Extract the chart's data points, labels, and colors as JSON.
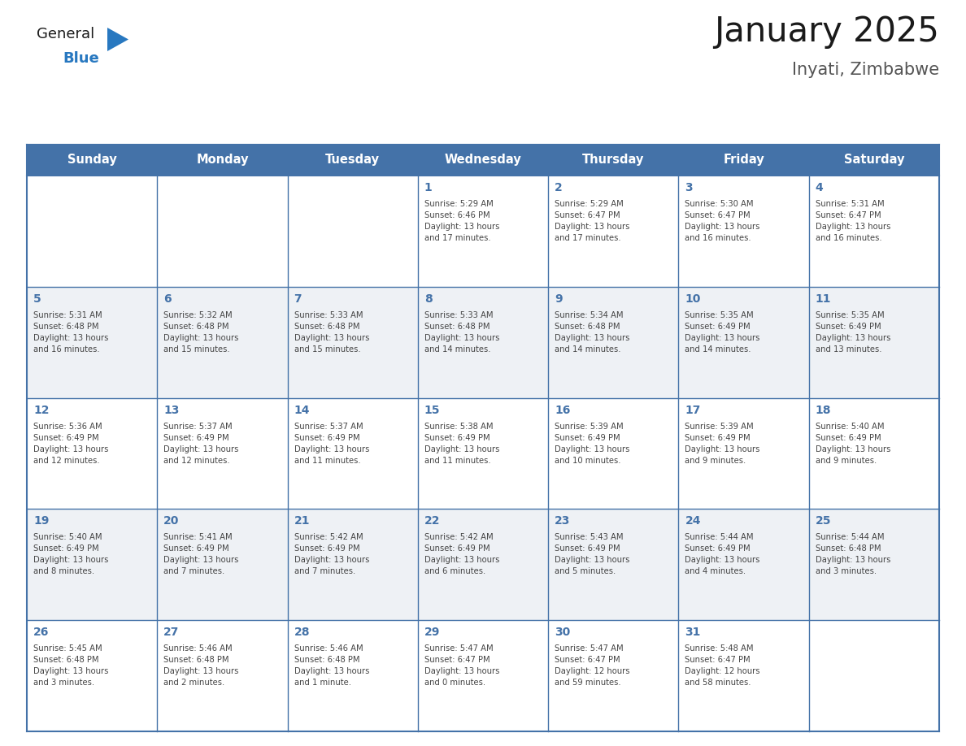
{
  "title": "January 2025",
  "subtitle": "Inyati, Zimbabwe",
  "days_of_week": [
    "Sunday",
    "Monday",
    "Tuesday",
    "Wednesday",
    "Thursday",
    "Friday",
    "Saturday"
  ],
  "header_bg": "#4472a8",
  "header_text": "#ffffff",
  "cell_bg_odd": "#eef1f5",
  "cell_bg_even": "#ffffff",
  "border_color": "#4472a8",
  "day_num_color": "#4472a8",
  "text_color": "#444444",
  "title_color": "#1a1a1a",
  "subtitle_color": "#555555",
  "logo_general_color": "#1a1a1a",
  "logo_blue_color": "#2878c0",
  "logo_triangle_color": "#2878c0",
  "calendar": [
    [
      {
        "day": null,
        "info": ""
      },
      {
        "day": null,
        "info": ""
      },
      {
        "day": null,
        "info": ""
      },
      {
        "day": 1,
        "info": "Sunrise: 5:29 AM\nSunset: 6:46 PM\nDaylight: 13 hours\nand 17 minutes."
      },
      {
        "day": 2,
        "info": "Sunrise: 5:29 AM\nSunset: 6:47 PM\nDaylight: 13 hours\nand 17 minutes."
      },
      {
        "day": 3,
        "info": "Sunrise: 5:30 AM\nSunset: 6:47 PM\nDaylight: 13 hours\nand 16 minutes."
      },
      {
        "day": 4,
        "info": "Sunrise: 5:31 AM\nSunset: 6:47 PM\nDaylight: 13 hours\nand 16 minutes."
      }
    ],
    [
      {
        "day": 5,
        "info": "Sunrise: 5:31 AM\nSunset: 6:48 PM\nDaylight: 13 hours\nand 16 minutes."
      },
      {
        "day": 6,
        "info": "Sunrise: 5:32 AM\nSunset: 6:48 PM\nDaylight: 13 hours\nand 15 minutes."
      },
      {
        "day": 7,
        "info": "Sunrise: 5:33 AM\nSunset: 6:48 PM\nDaylight: 13 hours\nand 15 minutes."
      },
      {
        "day": 8,
        "info": "Sunrise: 5:33 AM\nSunset: 6:48 PM\nDaylight: 13 hours\nand 14 minutes."
      },
      {
        "day": 9,
        "info": "Sunrise: 5:34 AM\nSunset: 6:48 PM\nDaylight: 13 hours\nand 14 minutes."
      },
      {
        "day": 10,
        "info": "Sunrise: 5:35 AM\nSunset: 6:49 PM\nDaylight: 13 hours\nand 14 minutes."
      },
      {
        "day": 11,
        "info": "Sunrise: 5:35 AM\nSunset: 6:49 PM\nDaylight: 13 hours\nand 13 minutes."
      }
    ],
    [
      {
        "day": 12,
        "info": "Sunrise: 5:36 AM\nSunset: 6:49 PM\nDaylight: 13 hours\nand 12 minutes."
      },
      {
        "day": 13,
        "info": "Sunrise: 5:37 AM\nSunset: 6:49 PM\nDaylight: 13 hours\nand 12 minutes."
      },
      {
        "day": 14,
        "info": "Sunrise: 5:37 AM\nSunset: 6:49 PM\nDaylight: 13 hours\nand 11 minutes."
      },
      {
        "day": 15,
        "info": "Sunrise: 5:38 AM\nSunset: 6:49 PM\nDaylight: 13 hours\nand 11 minutes."
      },
      {
        "day": 16,
        "info": "Sunrise: 5:39 AM\nSunset: 6:49 PM\nDaylight: 13 hours\nand 10 minutes."
      },
      {
        "day": 17,
        "info": "Sunrise: 5:39 AM\nSunset: 6:49 PM\nDaylight: 13 hours\nand 9 minutes."
      },
      {
        "day": 18,
        "info": "Sunrise: 5:40 AM\nSunset: 6:49 PM\nDaylight: 13 hours\nand 9 minutes."
      }
    ],
    [
      {
        "day": 19,
        "info": "Sunrise: 5:40 AM\nSunset: 6:49 PM\nDaylight: 13 hours\nand 8 minutes."
      },
      {
        "day": 20,
        "info": "Sunrise: 5:41 AM\nSunset: 6:49 PM\nDaylight: 13 hours\nand 7 minutes."
      },
      {
        "day": 21,
        "info": "Sunrise: 5:42 AM\nSunset: 6:49 PM\nDaylight: 13 hours\nand 7 minutes."
      },
      {
        "day": 22,
        "info": "Sunrise: 5:42 AM\nSunset: 6:49 PM\nDaylight: 13 hours\nand 6 minutes."
      },
      {
        "day": 23,
        "info": "Sunrise: 5:43 AM\nSunset: 6:49 PM\nDaylight: 13 hours\nand 5 minutes."
      },
      {
        "day": 24,
        "info": "Sunrise: 5:44 AM\nSunset: 6:49 PM\nDaylight: 13 hours\nand 4 minutes."
      },
      {
        "day": 25,
        "info": "Sunrise: 5:44 AM\nSunset: 6:48 PM\nDaylight: 13 hours\nand 3 minutes."
      }
    ],
    [
      {
        "day": 26,
        "info": "Sunrise: 5:45 AM\nSunset: 6:48 PM\nDaylight: 13 hours\nand 3 minutes."
      },
      {
        "day": 27,
        "info": "Sunrise: 5:46 AM\nSunset: 6:48 PM\nDaylight: 13 hours\nand 2 minutes."
      },
      {
        "day": 28,
        "info": "Sunrise: 5:46 AM\nSunset: 6:48 PM\nDaylight: 13 hours\nand 1 minute."
      },
      {
        "day": 29,
        "info": "Sunrise: 5:47 AM\nSunset: 6:47 PM\nDaylight: 13 hours\nand 0 minutes."
      },
      {
        "day": 30,
        "info": "Sunrise: 5:47 AM\nSunset: 6:47 PM\nDaylight: 12 hours\nand 59 minutes."
      },
      {
        "day": 31,
        "info": "Sunrise: 5:48 AM\nSunset: 6:47 PM\nDaylight: 12 hours\nand 58 minutes."
      },
      {
        "day": null,
        "info": ""
      }
    ]
  ]
}
